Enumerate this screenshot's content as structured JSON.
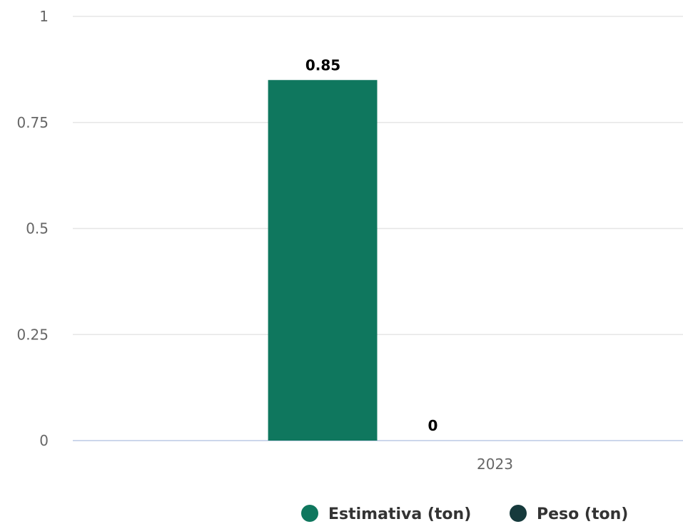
{
  "chart_data": {
    "type": "bar",
    "categories": [
      "2023"
    ],
    "series": [
      {
        "name": "Estimativa (ton)",
        "values": [
          0.85
        ],
        "color": "#0f775e"
      },
      {
        "name": "Peso (ton)",
        "values": [
          0
        ],
        "color": "#163a3c"
      }
    ],
    "yticks": [
      "0",
      "0.25",
      "0.5",
      "0.75",
      "1"
    ],
    "ylim": [
      0,
      1
    ],
    "grid": true,
    "legend_position": "bottom-center",
    "data_labels": [
      "0.85",
      "0"
    ]
  }
}
